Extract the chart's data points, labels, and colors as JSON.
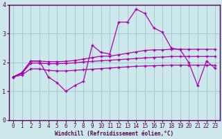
{
  "xlabel": "Windchill (Refroidissement éolien,°C)",
  "x": [
    0,
    1,
    2,
    3,
    4,
    5,
    6,
    7,
    8,
    9,
    10,
    11,
    12,
    13,
    14,
    15,
    16,
    17,
    18,
    19,
    20,
    21,
    22,
    23
  ],
  "line_max": [
    1.5,
    1.65,
    2.05,
    2.05,
    1.5,
    1.3,
    1.0,
    1.2,
    1.35,
    2.6,
    2.35,
    2.3,
    3.4,
    3.4,
    3.85,
    3.7,
    3.2,
    3.05,
    2.5,
    2.45,
    2.0,
    1.2,
    2.05,
    1.8
  ],
  "line_avg_top": [
    1.5,
    1.65,
    2.05,
    2.05,
    2.03,
    2.03,
    2.04,
    2.07,
    2.12,
    2.17,
    2.22,
    2.22,
    2.27,
    2.32,
    2.37,
    2.42,
    2.44,
    2.44,
    2.46,
    2.46,
    2.46,
    2.46,
    2.46,
    2.46
  ],
  "line_avg_mid": [
    1.5,
    1.62,
    1.98,
    1.98,
    1.96,
    1.96,
    1.97,
    1.99,
    2.02,
    2.04,
    2.06,
    2.08,
    2.1,
    2.12,
    2.14,
    2.16,
    2.18,
    2.19,
    2.21,
    2.21,
    2.21,
    2.21,
    2.21,
    2.21
  ],
  "line_avg_low": [
    1.5,
    1.57,
    1.78,
    1.78,
    1.73,
    1.71,
    1.71,
    1.73,
    1.75,
    1.77,
    1.79,
    1.81,
    1.83,
    1.85,
    1.87,
    1.88,
    1.89,
    1.9,
    1.91,
    1.91,
    1.91,
    1.91,
    1.91,
    1.91
  ],
  "bg_color": "#cce8ea",
  "plot_bg_color": "#cce8ea",
  "line_color": "#aa00aa",
  "grid_color": "#99bbcc",
  "border_color": "#550055",
  "ylim": [
    0,
    4
  ],
  "xlim": [
    -0.5,
    23.5
  ],
  "yticks": [
    0,
    1,
    2,
    3,
    4
  ],
  "xticks": [
    0,
    1,
    2,
    3,
    4,
    5,
    6,
    7,
    8,
    9,
    10,
    11,
    12,
    13,
    14,
    15,
    16,
    17,
    18,
    19,
    20,
    21,
    22,
    23
  ],
  "tick_labelsize": 5.5,
  "xlabel_fontsize": 5.5
}
